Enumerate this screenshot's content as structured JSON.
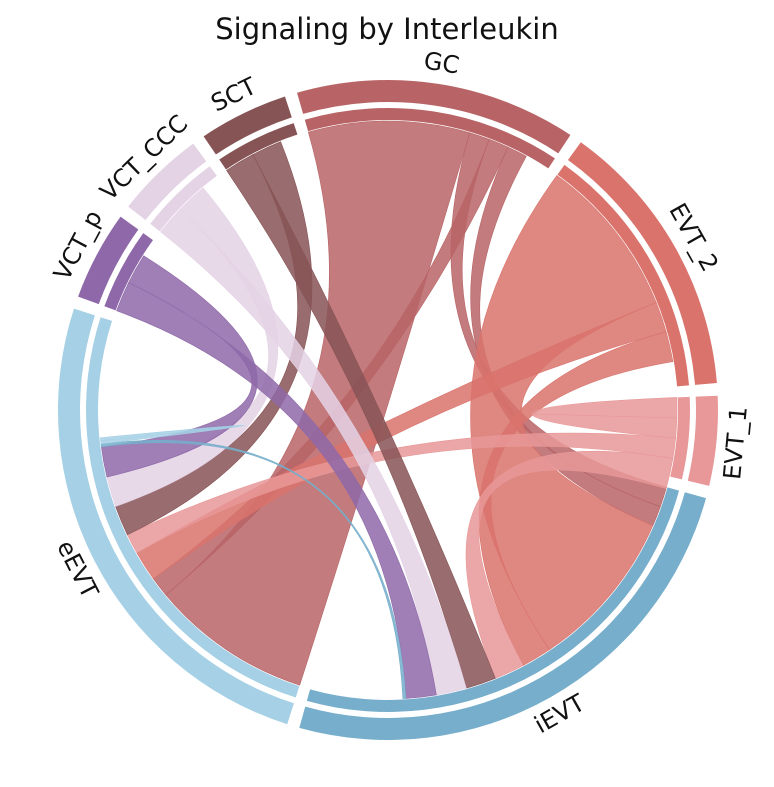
{
  "chart_data": {
    "type": "chord",
    "title": "Signaling by Interleukin",
    "sectors": [
      {
        "name": "GC",
        "value": 22,
        "color": "#b86466"
      },
      {
        "name": "EVT_2",
        "value": 22,
        "color": "#d9736c"
      },
      {
        "name": "EVT_1",
        "value": 7,
        "color": "#e89898"
      },
      {
        "name": "iEVT",
        "value": 40,
        "color": "#76aecb"
      },
      {
        "name": "eEVT",
        "value": 40,
        "color": "#a5d0e5"
      },
      {
        "name": "VCT_p",
        "value": 7,
        "color": "#8e68a8"
      },
      {
        "name": "VCT_CCC",
        "value": 7,
        "color": "#e4d2e5"
      },
      {
        "name": "SCT",
        "value": 7,
        "color": "#875456"
      }
    ],
    "links": [
      {
        "source": "GC",
        "target": "eEVT",
        "value": 16
      },
      {
        "source": "GC",
        "target": "iEVT",
        "value": 2
      },
      {
        "source": "GC",
        "target": "eEVT",
        "value": 2
      },
      {
        "source": "GC",
        "target": "iEVT",
        "value": 2
      },
      {
        "source": "EVT_2",
        "target": "iEVT",
        "value": 16
      },
      {
        "source": "EVT_2",
        "target": "eEVT",
        "value": 3
      },
      {
        "source": "EVT_2",
        "target": "iEVT",
        "value": 3
      },
      {
        "source": "EVT_1",
        "target": "EVT_1",
        "value": 2
      },
      {
        "source": "EVT_1",
        "target": "eEVT",
        "value": 2
      },
      {
        "source": "EVT_1",
        "target": "iEVT",
        "value": 3
      },
      {
        "source": "SCT",
        "target": "iEVT",
        "value": 3
      },
      {
        "source": "SCT",
        "target": "eEVT",
        "value": 3
      },
      {
        "source": "VCT_CCC",
        "target": "iEVT",
        "value": 3
      },
      {
        "source": "VCT_CCC",
        "target": "eEVT",
        "value": 3
      },
      {
        "source": "VCT_p",
        "target": "iEVT",
        "value": 3
      },
      {
        "source": "VCT_p",
        "target": "eEVT",
        "value": 3
      },
      {
        "source": "iEVT",
        "target": "eEVT",
        "value": 0.3
      },
      {
        "source": "eEVT",
        "target": "eEVT",
        "value": 0.3
      }
    ]
  }
}
